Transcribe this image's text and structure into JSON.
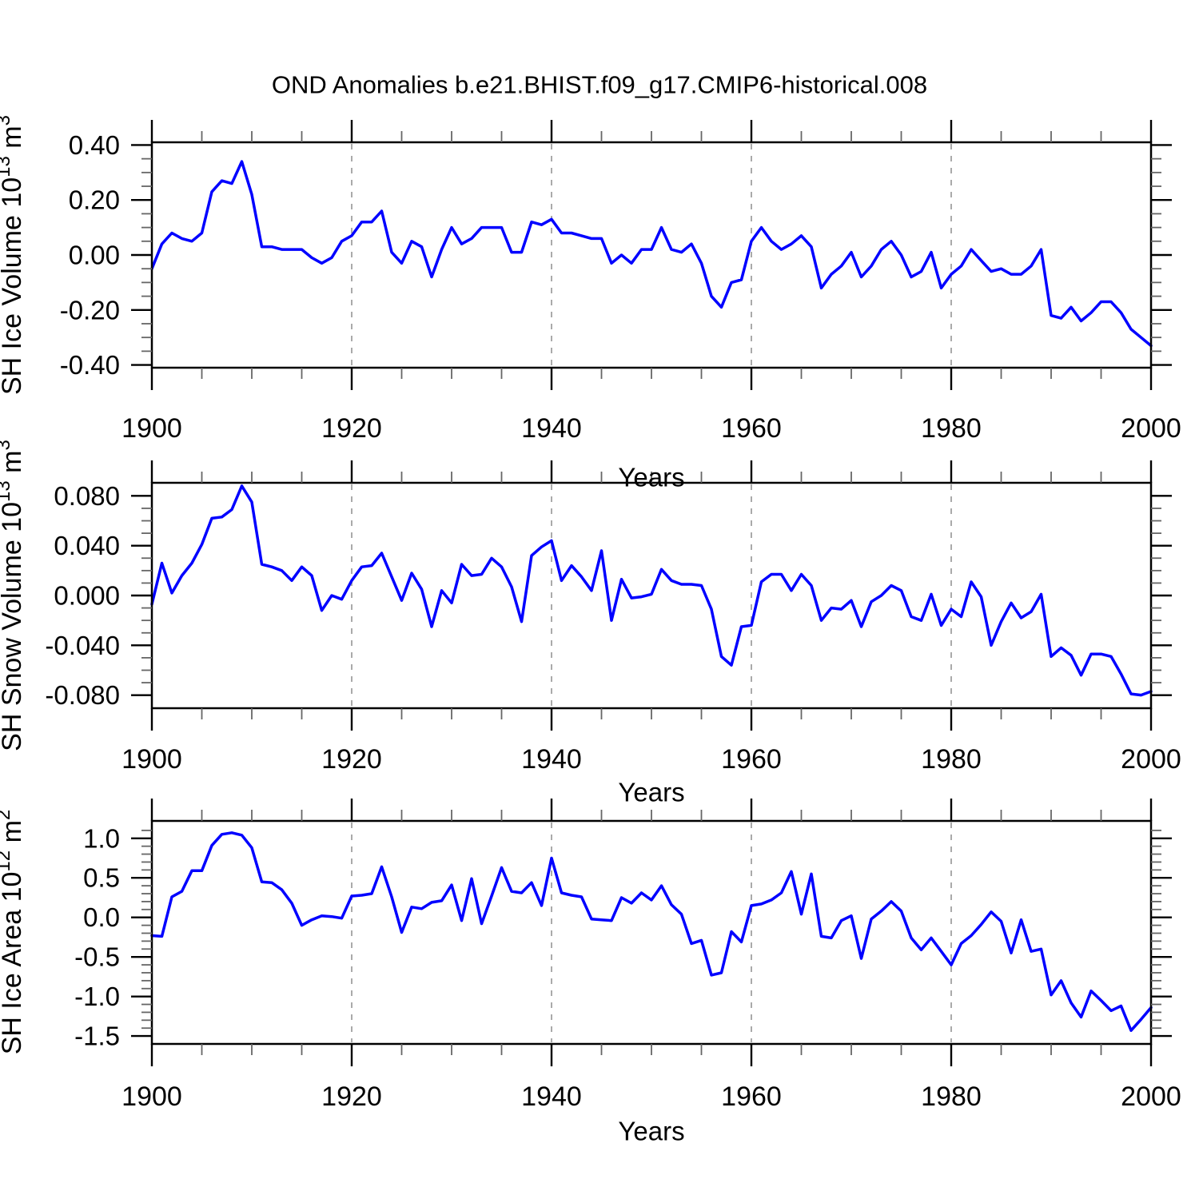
{
  "page": {
    "title": "OND Anomalies b.e21.BHIST.f09_g17.CMIP6-historical.008",
    "background": "#ffffff"
  },
  "colors": {
    "line": "#0000ff",
    "axis": "#000000",
    "minor_tick": "#666666",
    "grid": "#aaaaaa",
    "text": "#000000"
  },
  "axis_x": {
    "label": "Years",
    "start": 1900,
    "end": 2000,
    "major_ticks": [
      1900,
      1920,
      1940,
      1960,
      1980,
      2000
    ],
    "minor_step": 5,
    "gridlines": [
      1920,
      1940,
      1960,
      1980
    ]
  },
  "chart_data": [
    {
      "type": "line",
      "title": "OND Anomalies b.e21.BHIST.f09_g17.CMIP6-historical.008",
      "xlabel": "Years",
      "ylabel": "SH Ice Volume 10^13 m^3",
      "ylabel_parts": {
        "prefix": "SH Ice Volume 10",
        "sup1": "13",
        "mid": " m",
        "sup2": "3"
      },
      "x_start": 1900,
      "x_step": 1,
      "ylim": [
        -0.41,
        0.41
      ],
      "grid": "vertical-dashed",
      "legend": "none",
      "ytick_values": [
        0.4,
        0.2,
        0.0,
        -0.2,
        -0.4
      ],
      "ytick_labels": [
        "0.40",
        "0.20",
        "0.00",
        "-0.20",
        "-0.40"
      ],
      "yminor_step": 0.05,
      "series": [
        {
          "name": "SH Ice Volume anomaly",
          "color": "#0000ff",
          "values": [
            -0.05,
            0.04,
            0.08,
            0.06,
            0.05,
            0.08,
            0.23,
            0.27,
            0.26,
            0.34,
            0.22,
            0.03,
            0.03,
            0.02,
            0.02,
            0.02,
            -0.01,
            -0.03,
            -0.01,
            0.05,
            0.07,
            0.12,
            0.12,
            0.16,
            0.01,
            -0.03,
            0.05,
            0.03,
            -0.08,
            0.02,
            0.1,
            0.04,
            0.06,
            0.1,
            0.1,
            0.1,
            0.01,
            0.01,
            0.12,
            0.11,
            0.13,
            0.08,
            0.08,
            0.07,
            0.06,
            0.06,
            -0.03,
            0.0,
            -0.03,
            0.02,
            0.02,
            0.1,
            0.02,
            0.01,
            0.04,
            -0.03,
            -0.15,
            -0.19,
            -0.1,
            -0.09,
            0.05,
            0.1,
            0.05,
            0.02,
            0.04,
            0.07,
            0.03,
            -0.12,
            -0.07,
            -0.04,
            0.01,
            -0.08,
            -0.04,
            0.02,
            0.05,
            0.0,
            -0.08,
            -0.06,
            0.01,
            -0.12,
            -0.07,
            -0.04,
            0.02,
            -0.02,
            -0.06,
            -0.05,
            -0.07,
            -0.07,
            -0.04,
            0.02,
            -0.22,
            -0.23,
            -0.19,
            -0.24,
            -0.21,
            -0.17,
            -0.17,
            -0.21,
            -0.27,
            -0.3,
            -0.33
          ]
        }
      ]
    },
    {
      "type": "line",
      "title": "",
      "xlabel": "Years",
      "ylabel": "SH Snow Volume 10^13 m^3",
      "ylabel_parts": {
        "prefix": "SH Snow Volume 10",
        "sup1": "13",
        "mid": " m",
        "sup2": "3"
      },
      "x_start": 1900,
      "x_step": 1,
      "ylim": [
        -0.0905,
        0.0905
      ],
      "grid": "vertical-dashed",
      "legend": "none",
      "ytick_values": [
        0.08,
        0.04,
        0.0,
        -0.04,
        -0.08
      ],
      "ytick_labels": [
        "0.080",
        "0.040",
        "0.000",
        "-0.040",
        "-0.080"
      ],
      "yminor_step": 0.01,
      "series": [
        {
          "name": "SH Snow Volume anomaly",
          "color": "#0000ff",
          "values": [
            -0.007,
            0.026,
            0.002,
            0.016,
            0.026,
            0.041,
            0.062,
            0.063,
            0.069,
            0.088,
            0.075,
            0.025,
            0.023,
            0.02,
            0.012,
            0.023,
            0.016,
            -0.012,
            0.0,
            -0.003,
            0.012,
            0.023,
            0.024,
            0.034,
            0.015,
            -0.004,
            0.018,
            0.005,
            -0.025,
            0.004,
            -0.006,
            0.025,
            0.016,
            0.017,
            0.03,
            0.023,
            0.007,
            -0.021,
            0.032,
            0.039,
            0.044,
            0.012,
            0.024,
            0.015,
            0.004,
            0.036,
            -0.02,
            0.013,
            -0.002,
            -0.001,
            0.001,
            0.021,
            0.012,
            0.009,
            0.009,
            0.008,
            -0.011,
            -0.049,
            -0.056,
            -0.025,
            -0.024,
            0.011,
            0.017,
            0.017,
            0.004,
            0.017,
            0.008,
            -0.02,
            -0.01,
            -0.011,
            -0.004,
            -0.025,
            -0.005,
            0.0,
            0.008,
            0.004,
            -0.017,
            -0.02,
            0.001,
            -0.024,
            -0.011,
            -0.017,
            0.011,
            -0.001,
            -0.04,
            -0.021,
            -0.006,
            -0.018,
            -0.013,
            0.001,
            -0.049,
            -0.042,
            -0.048,
            -0.064,
            -0.047,
            -0.047,
            -0.049,
            -0.063,
            -0.079,
            -0.08,
            -0.077
          ]
        }
      ]
    },
    {
      "type": "line",
      "title": "",
      "xlabel": "Years",
      "ylabel": "SH Ice Area 10^12 m^2",
      "ylabel_parts": {
        "prefix": "SH Ice Area 10",
        "sup1": "12",
        "mid": " m",
        "sup2": "2"
      },
      "x_start": 1900,
      "x_step": 1,
      "ylim": [
        -1.6,
        1.22
      ],
      "grid": "vertical-dashed",
      "legend": "none",
      "ytick_values": [
        1.0,
        0.5,
        0.0,
        -0.5,
        -1.0,
        -1.5
      ],
      "ytick_labels": [
        "1.0",
        "0.5",
        "0.0",
        "-0.5",
        "-1.0",
        "-1.5"
      ],
      "yminor_step": 0.1,
      "series": [
        {
          "name": "SH Ice Area anomaly",
          "color": "#0000ff",
          "values": [
            -0.23,
            -0.24,
            0.26,
            0.33,
            0.59,
            0.59,
            0.91,
            1.05,
            1.07,
            1.04,
            0.88,
            0.45,
            0.44,
            0.35,
            0.18,
            -0.1,
            -0.03,
            0.02,
            0.01,
            -0.01,
            0.27,
            0.28,
            0.3,
            0.64,
            0.26,
            -0.19,
            0.13,
            0.11,
            0.19,
            0.21,
            0.41,
            -0.04,
            0.49,
            -0.08,
            0.27,
            0.63,
            0.33,
            0.31,
            0.44,
            0.15,
            0.75,
            0.31,
            0.28,
            0.26,
            -0.02,
            -0.03,
            -0.04,
            0.25,
            0.18,
            0.31,
            0.22,
            0.4,
            0.16,
            0.04,
            -0.33,
            -0.29,
            -0.73,
            -0.7,
            -0.18,
            -0.31,
            0.15,
            0.17,
            0.22,
            0.31,
            0.58,
            0.04,
            0.55,
            -0.24,
            -0.26,
            -0.04,
            0.02,
            -0.52,
            -0.02,
            0.08,
            0.2,
            0.08,
            -0.26,
            -0.41,
            -0.26,
            -0.43,
            -0.6,
            -0.33,
            -0.23,
            -0.09,
            0.07,
            -0.05,
            -0.45,
            -0.03,
            -0.43,
            -0.4,
            -0.98,
            -0.8,
            -1.08,
            -1.26,
            -0.93,
            -1.05,
            -1.18,
            -1.12,
            -1.43,
            -1.29,
            -1.14
          ]
        }
      ]
    }
  ]
}
